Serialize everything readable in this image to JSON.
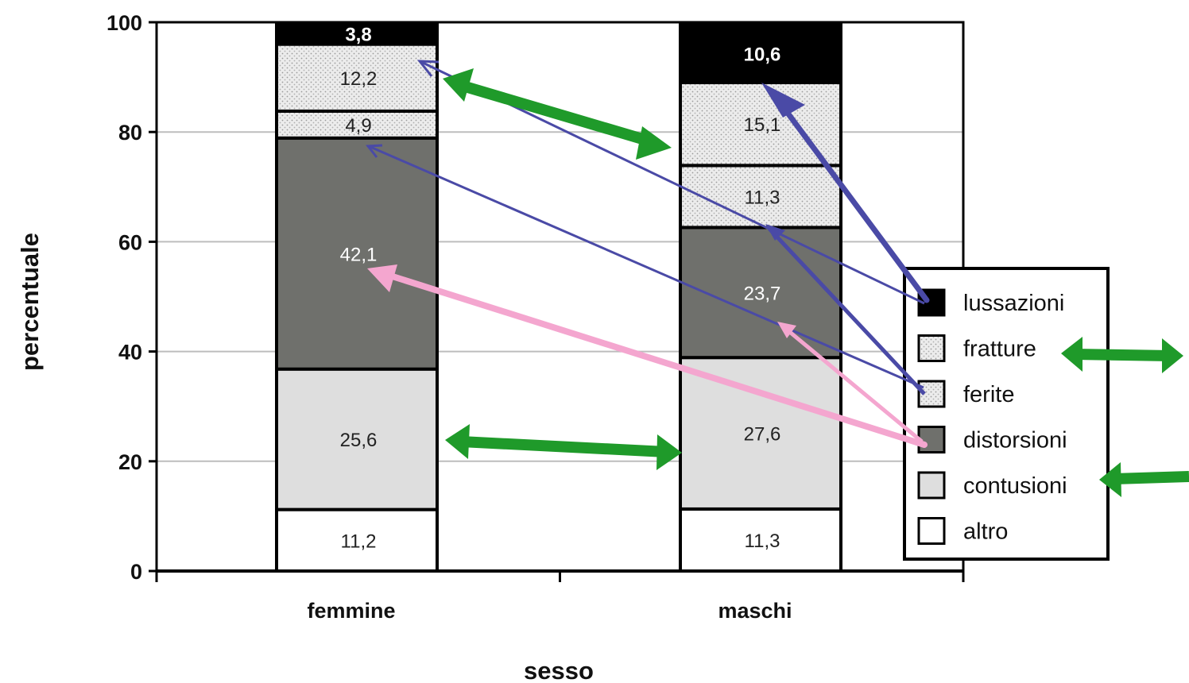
{
  "chart_data": {
    "type": "bar",
    "stacked": true,
    "title": "",
    "xlabel": "sesso",
    "ylabel": "percentuale",
    "ylim": [
      0,
      100
    ],
    "yticks": [
      "0",
      "20",
      "40",
      "60",
      "80",
      "100"
    ],
    "categories": [
      "femmine",
      "maschi"
    ],
    "series": [
      {
        "name": "altro",
        "values": [
          11.2,
          11.3
        ],
        "labels": [
          "11,2",
          "11,3"
        ],
        "color": "#ffffff",
        "pattern": "none"
      },
      {
        "name": "contusioni",
        "values": [
          25.6,
          27.6
        ],
        "labels": [
          "25,6",
          "27,6"
        ],
        "color": "#dedede",
        "pattern": "none"
      },
      {
        "name": "distorsioni",
        "values": [
          42.1,
          23.7
        ],
        "labels": [
          "42,1",
          "23,7"
        ],
        "color": "#6f706c",
        "pattern": "none"
      },
      {
        "name": "ferite",
        "values": [
          4.9,
          11.3
        ],
        "labels": [
          "4,9",
          "11,3"
        ],
        "color": "#ececec",
        "pattern": "dots"
      },
      {
        "name": "fratture",
        "values": [
          12.2,
          15.1
        ],
        "labels": [
          "12,2",
          "15,1"
        ],
        "color": "#ececec",
        "pattern": "dots"
      },
      {
        "name": "lussazioni",
        "values": [
          3.8,
          10.6
        ],
        "labels": [
          "3,8",
          "10,6"
        ],
        "color": "#000000",
        "pattern": "none"
      }
    ],
    "legend_order": [
      "lussazioni",
      "fratture",
      "ferite",
      "distorsioni",
      "contusioni",
      "altro"
    ],
    "legend_position": "right",
    "grid": true,
    "annotations": {
      "arrow_colors": {
        "blue": "#4a4aa6",
        "green": "#1f9a2a",
        "pink": "#f4a6cf"
      }
    }
  }
}
